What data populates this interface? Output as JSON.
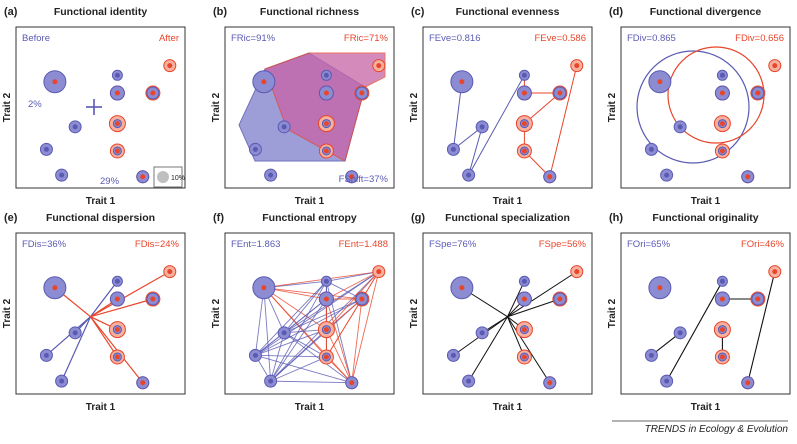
{
  "colors": {
    "before": "#5a5ab4",
    "after": "#e8452a",
    "before_fill": "#8c8cd2",
    "after_fill": "#f6b09e",
    "mix_fill": "#c863a6",
    "frame": "#333333",
    "size_key": "#bfbfbf"
  },
  "axis": {
    "x": "Trait 1",
    "y": "Trait 2"
  },
  "footer": "TRENDS in Ecology & Evolution",
  "panels": [
    {
      "letter": "(a)",
      "title": "Functional identity",
      "left": "Before",
      "right": "After",
      "extra1": "2%",
      "extra2": "29%",
      "key": "10%"
    },
    {
      "letter": "(b)",
      "title": "Functional richness",
      "left": "FRic=91%",
      "right": "FRic=71%",
      "extra1": "FShift=37%"
    },
    {
      "letter": "(c)",
      "title": "Functional evenness",
      "left": "FEve=0.816",
      "right": "FEve=0.586"
    },
    {
      "letter": "(d)",
      "title": "Functional divergence",
      "left": "FDiv=0.865",
      "right": "FDiv=0.656"
    },
    {
      "letter": "(e)",
      "title": "Functional dispersion",
      "left": "FDis=36%",
      "right": "FDis=24%"
    },
    {
      "letter": "(f)",
      "title": "Functional entropy",
      "left": "FEnt=1.863",
      "right": "FEnt=1.488"
    },
    {
      "letter": "(g)",
      "title": "Functional specialization",
      "left": "FSpe=76%",
      "right": "FSpe=56%"
    },
    {
      "letter": "(h)",
      "title": "Functional originality",
      "left": "FOri=65%",
      "right": "FOri=46%"
    }
  ]
}
